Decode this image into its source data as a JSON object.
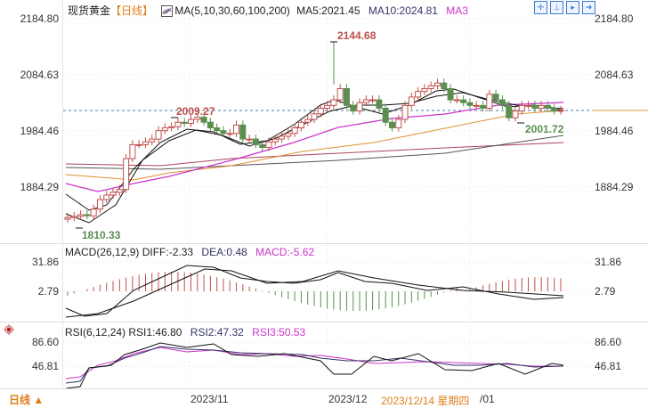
{
  "header": {
    "instrument": "现货黄金",
    "period_bracket": "【日线】",
    "ma_params": "MA(5,10,30,60,100,200)",
    "ma5": "MA5:2021.45",
    "ma10": "MA10:2024.81",
    "ma3": "MA3"
  },
  "toolbar": {
    "icons": [
      "crosshair-icon",
      "zoom-in-icon",
      "step-forward-icon",
      "scroll-end-icon"
    ]
  },
  "price_axis": {
    "ticks": [
      "2184.80",
      "2084.63",
      "1984.46",
      "1884.29"
    ]
  },
  "macd": {
    "label": "MACD(26,12,9)",
    "diff": "DIFF:-2.33",
    "dea": "DEA:0.48",
    "macd": "MACD:-5.62",
    "ticks": [
      "31.86",
      "2.79"
    ]
  },
  "rsi": {
    "label": "RSI(6,12,24)",
    "rsi1": "RSI1:46.80",
    "rsi2": "RSI2:47.32",
    "rsi3": "RSI3:50.53",
    "ticks": [
      "86.60",
      "46.81"
    ]
  },
  "annotations": {
    "high": "2144.68",
    "low": "1810.33",
    "local_high": "2009.27",
    "local_low": "2001.72"
  },
  "bottom": {
    "period_button": "日线 ▲",
    "dates": [
      "2023/11",
      "2023/12",
      "/01"
    ],
    "cursor_date": "2023/12/14 星期四"
  },
  "colors": {
    "up": "#c0504d",
    "down": "#5a8f4f",
    "accent": "#e07e1a",
    "ma_magenta": "#cc33cc",
    "ma_navy": "#333366"
  },
  "chart_data": [
    {
      "type": "candlestick",
      "title": "现货黄金 日线",
      "ylim": [
        1810,
        2185
      ],
      "y_ticks": [
        2184.8,
        2084.63,
        1984.46,
        1884.29
      ],
      "x_labels": [
        "2023/11",
        "2023/12",
        "2024/01"
      ],
      "annotations": {
        "max": 2144.68,
        "min": 1810.33,
        "local_high": 2009.27,
        "local_low": 2001.72
      },
      "indicators": {
        "MA5": 2021.45,
        "MA10": 2024.81
      },
      "close_approx": [
        1830,
        1832,
        1835,
        1833,
        1845,
        1862,
        1870,
        1875,
        1880,
        1935,
        1960,
        1960,
        1965,
        1970,
        1985,
        1990,
        1992,
        2000,
        1998,
        2005,
        2009,
        2000,
        1990,
        1985,
        1980,
        1980,
        1995,
        1970,
        1970,
        1960,
        1955,
        1965,
        1970,
        1975,
        1980,
        1990,
        2000,
        2005,
        2015,
        2025,
        2030,
        2040,
        2060,
        2030,
        2020,
        2035,
        2040,
        2040,
        2025,
        2000,
        1990,
        2005,
        2030,
        2045,
        2055,
        2060,
        2065,
        2070,
        2060,
        2040,
        2040,
        2035,
        2030,
        2030,
        2025,
        2050,
        2040,
        2030,
        2008,
        2020,
        2030,
        2030,
        2025,
        2030,
        2025,
        2020,
        2021
      ]
    },
    {
      "type": "bar+line",
      "title": "MACD(26,12,9)",
      "y_ticks": [
        31.86,
        2.79
      ],
      "series": [
        {
          "name": "DIFF",
          "last": -2.33
        },
        {
          "name": "DEA",
          "last": 0.48
        },
        {
          "name": "MACD",
          "last": -5.62
        }
      ]
    },
    {
      "type": "line",
      "title": "RSI(6,12,24)",
      "y_ticks": [
        86.6,
        46.81
      ],
      "series": [
        {
          "name": "RSI1",
          "last": 46.8
        },
        {
          "name": "RSI2",
          "last": 47.32
        },
        {
          "name": "RSI3",
          "last": 50.53
        }
      ]
    }
  ]
}
